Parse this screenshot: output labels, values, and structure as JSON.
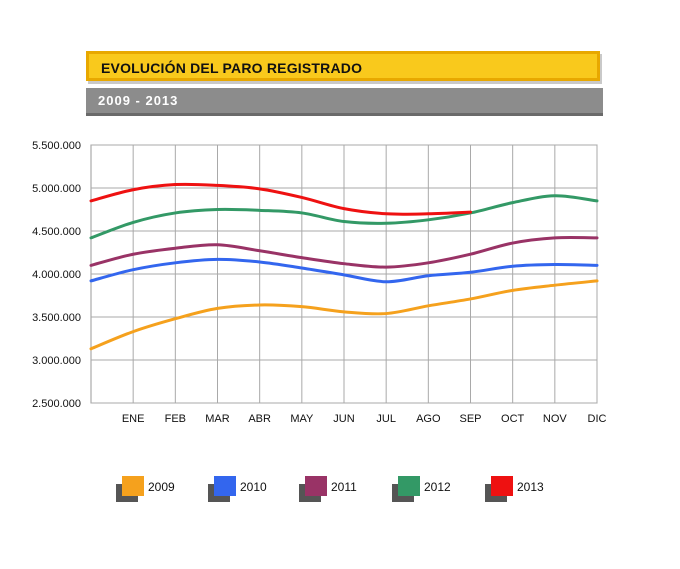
{
  "header": {
    "title": "EVOLUCIÓN DEL PARO REGISTRADO",
    "subtitle": "2009 - 2013"
  },
  "chart_data": {
    "type": "line",
    "categories": [
      "",
      "ENE",
      "FEB",
      "MAR",
      "ABR",
      "MAY",
      "JUN",
      "JUL",
      "AGO",
      "SEP",
      "OCT",
      "NOV",
      "DIC"
    ],
    "ylim": [
      2500000,
      5500000
    ],
    "yticks": [
      2500000,
      3000000,
      3500000,
      4000000,
      4500000,
      5000000,
      5500000
    ],
    "ytick_labels": [
      "2.500.000",
      "3.000.000",
      "3.500.000",
      "4.000.000",
      "4.500.000",
      "5.000.000",
      "5.500.000"
    ],
    "grid": true,
    "legend_position": "bottom",
    "series": [
      {
        "name": "2009",
        "color": "#f5a11d",
        "values": [
          3130000,
          3330000,
          3480000,
          3600000,
          3640000,
          3620000,
          3560000,
          3540000,
          3630000,
          3710000,
          3810000,
          3870000,
          3920000
        ]
      },
      {
        "name": "2010",
        "color": "#3366ee",
        "values": [
          3920000,
          4050000,
          4130000,
          4170000,
          4140000,
          4070000,
          3990000,
          3910000,
          3980000,
          4020000,
          4090000,
          4110000,
          4100000
        ]
      },
      {
        "name": "2011",
        "color": "#993366",
        "values": [
          4100000,
          4230000,
          4300000,
          4340000,
          4270000,
          4190000,
          4120000,
          4080000,
          4130000,
          4230000,
          4360000,
          4420000,
          4420000
        ]
      },
      {
        "name": "2012",
        "color": "#339966",
        "values": [
          4420000,
          4600000,
          4710000,
          4750000,
          4740000,
          4710000,
          4610000,
          4590000,
          4630000,
          4710000,
          4830000,
          4910000,
          4850000
        ]
      },
      {
        "name": "2013",
        "color": "#ee1111",
        "values": [
          4850000,
          4980000,
          5040000,
          5030000,
          4990000,
          4890000,
          4760000,
          4700000,
          4700000,
          4720000,
          null,
          null,
          null
        ]
      }
    ]
  }
}
